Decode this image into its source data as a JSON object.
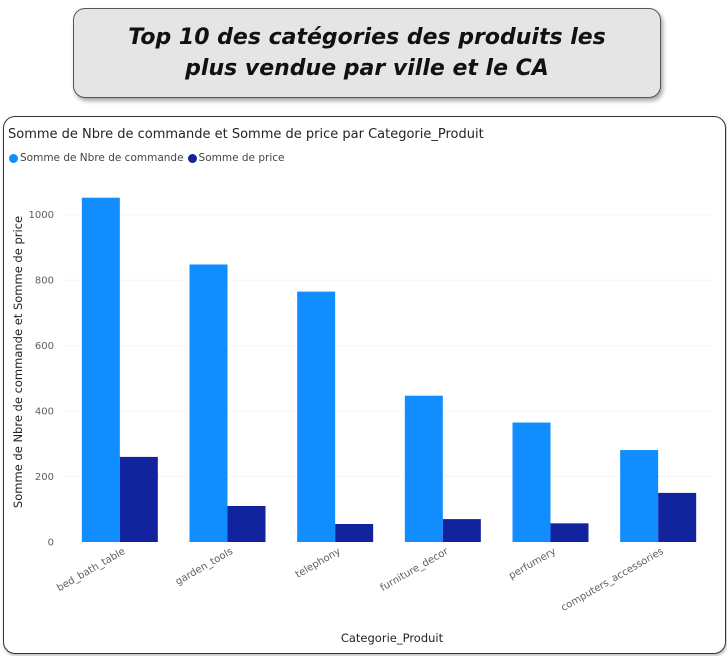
{
  "banner": {
    "title": "Top 10 des catégories des produits les plus vendue par ville et le CA"
  },
  "chart_data": {
    "type": "bar",
    "title": "Somme de Nbre de commande et Somme de price par Categorie_Produit",
    "xlabel": "Categorie_Produit",
    "ylabel": "Somme de Nbre de commande et Somme de price",
    "categories": [
      "bed_bath_table",
      "garden_tools",
      "telephony",
      "furniture_decor",
      "perfumery",
      "computers_accessories"
    ],
    "series": [
      {
        "name": "Somme de Nbre de commande",
        "color": "#118DFF",
        "values": [
          1052,
          848,
          765,
          447,
          365,
          281
        ]
      },
      {
        "name": "Somme de price",
        "color": "#12239E",
        "values": [
          260,
          110,
          55,
          70,
          57,
          150
        ]
      }
    ],
    "yticks": [
      0,
      200,
      400,
      600,
      800,
      1000
    ],
    "ylim": [
      0,
      1100
    ],
    "grid": true,
    "legend_position": "top-left"
  }
}
